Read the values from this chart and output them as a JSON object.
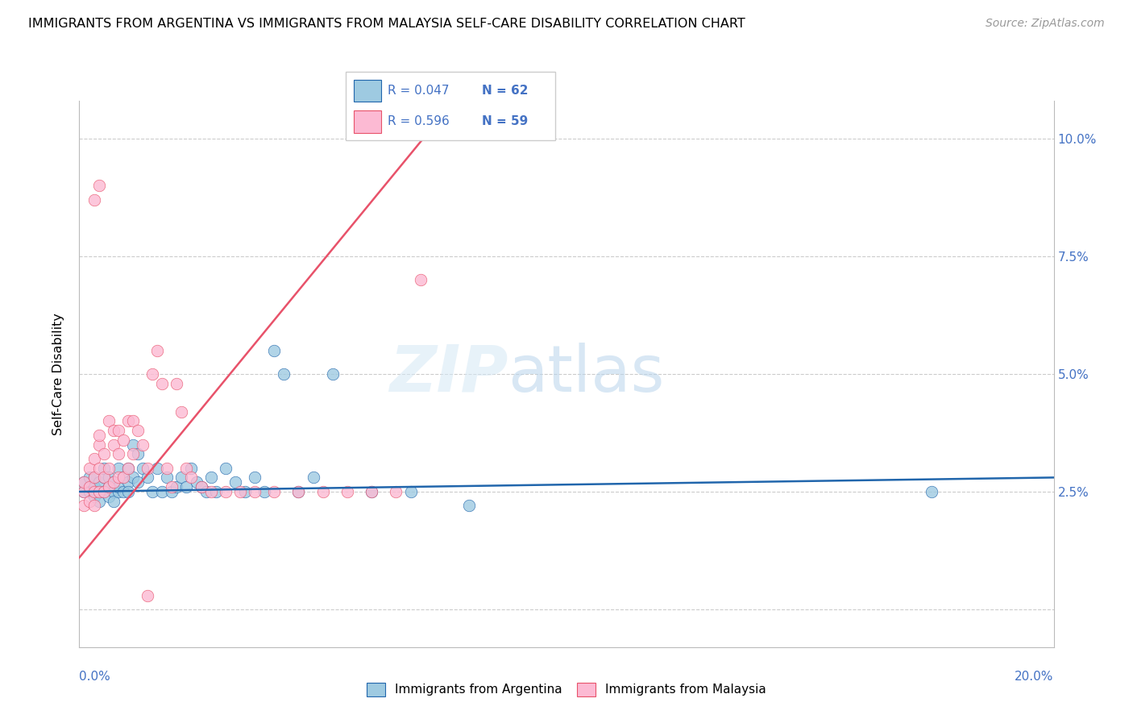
{
  "title": "IMMIGRANTS FROM ARGENTINA VS IMMIGRANTS FROM MALAYSIA SELF-CARE DISABILITY CORRELATION CHART",
  "source": "Source: ZipAtlas.com",
  "ylabel": "Self-Care Disability",
  "yaxis_ticks": [
    0.0,
    0.025,
    0.05,
    0.075,
    0.1
  ],
  "yaxis_labels": [
    "",
    "2.5%",
    "5.0%",
    "7.5%",
    "10.0%"
  ],
  "xlim": [
    0.0,
    0.2
  ],
  "ylim": [
    -0.008,
    0.108
  ],
  "legend1_R": "R = 0.047",
  "legend1_N": "N = 62",
  "legend2_R": "R = 0.596",
  "legend2_N": "N = 59",
  "color_argentina": "#9ecae1",
  "color_malaysia": "#fcbad3",
  "trendline_argentina_color": "#2166ac",
  "trendline_malaysia_color": "#e8526a",
  "watermark_zip": "ZIP",
  "watermark_atlas": "atlas",
  "argentina_x": [
    0.001,
    0.001,
    0.002,
    0.002,
    0.002,
    0.003,
    0.003,
    0.003,
    0.004,
    0.004,
    0.004,
    0.005,
    0.005,
    0.005,
    0.006,
    0.006,
    0.006,
    0.007,
    0.007,
    0.007,
    0.008,
    0.008,
    0.008,
    0.009,
    0.009,
    0.01,
    0.01,
    0.01,
    0.011,
    0.011,
    0.012,
    0.012,
    0.013,
    0.014,
    0.015,
    0.016,
    0.017,
    0.018,
    0.019,
    0.02,
    0.021,
    0.022,
    0.023,
    0.024,
    0.025,
    0.026,
    0.027,
    0.028,
    0.03,
    0.032,
    0.034,
    0.036,
    0.038,
    0.04,
    0.042,
    0.045,
    0.048,
    0.052,
    0.06,
    0.068,
    0.08,
    0.175
  ],
  "argentina_y": [
    0.025,
    0.027,
    0.026,
    0.028,
    0.025,
    0.024,
    0.026,
    0.028,
    0.025,
    0.027,
    0.023,
    0.025,
    0.028,
    0.03,
    0.026,
    0.028,
    0.024,
    0.025,
    0.027,
    0.023,
    0.025,
    0.03,
    0.026,
    0.028,
    0.025,
    0.03,
    0.027,
    0.025,
    0.028,
    0.035,
    0.033,
    0.027,
    0.03,
    0.028,
    0.025,
    0.03,
    0.025,
    0.028,
    0.025,
    0.026,
    0.028,
    0.026,
    0.03,
    0.027,
    0.026,
    0.025,
    0.028,
    0.025,
    0.03,
    0.027,
    0.025,
    0.028,
    0.025,
    0.055,
    0.05,
    0.025,
    0.028,
    0.05,
    0.025,
    0.025,
    0.022,
    0.025
  ],
  "malaysia_x": [
    0.001,
    0.001,
    0.001,
    0.002,
    0.002,
    0.002,
    0.003,
    0.003,
    0.003,
    0.003,
    0.004,
    0.004,
    0.004,
    0.004,
    0.005,
    0.005,
    0.005,
    0.006,
    0.006,
    0.006,
    0.007,
    0.007,
    0.007,
    0.008,
    0.008,
    0.008,
    0.009,
    0.009,
    0.01,
    0.01,
    0.011,
    0.011,
    0.012,
    0.013,
    0.014,
    0.015,
    0.016,
    0.017,
    0.018,
    0.019,
    0.02,
    0.021,
    0.022,
    0.023,
    0.025,
    0.027,
    0.03,
    0.033,
    0.036,
    0.04,
    0.045,
    0.05,
    0.055,
    0.06,
    0.065,
    0.07,
    0.014,
    0.003,
    0.004
  ],
  "malaysia_y": [
    0.025,
    0.027,
    0.022,
    0.026,
    0.03,
    0.023,
    0.025,
    0.028,
    0.032,
    0.022,
    0.025,
    0.03,
    0.035,
    0.037,
    0.025,
    0.028,
    0.033,
    0.026,
    0.03,
    0.04,
    0.027,
    0.035,
    0.038,
    0.028,
    0.033,
    0.038,
    0.028,
    0.036,
    0.03,
    0.04,
    0.033,
    0.04,
    0.038,
    0.035,
    0.03,
    0.05,
    0.055,
    0.048,
    0.03,
    0.026,
    0.048,
    0.042,
    0.03,
    0.028,
    0.026,
    0.025,
    0.025,
    0.025,
    0.025,
    0.025,
    0.025,
    0.025,
    0.025,
    0.025,
    0.025,
    0.07,
    0.003,
    0.087,
    0.09
  ],
  "trendline_malaysia_x0": 0.0,
  "trendline_malaysia_y0": 0.011,
  "trendline_malaysia_x1": 0.073,
  "trendline_malaysia_y1": 0.103,
  "trendline_argentina_x0": 0.0,
  "trendline_argentina_y0": 0.025,
  "trendline_argentina_x1": 0.2,
  "trendline_argentina_y1": 0.028
}
